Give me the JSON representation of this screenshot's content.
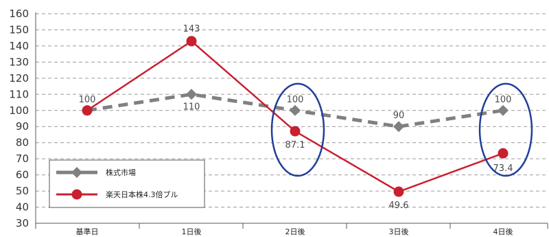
{
  "chart_data": {
    "type": "line",
    "categories": [
      "基準日",
      "1日後",
      "2日後",
      "3日後",
      "4日後"
    ],
    "ylim": [
      30,
      160
    ],
    "ystep": 10,
    "grid": true,
    "legend_position": "bottom-left",
    "series": [
      {
        "name": "株式市場",
        "values": [
          100,
          110,
          100,
          90,
          100
        ],
        "labels": [
          "100",
          "110",
          "100",
          "90",
          "100"
        ],
        "color": "#808080",
        "style": "dashed",
        "marker": "diamond"
      },
      {
        "name": "楽天日本株4.3倍ブル",
        "values": [
          100,
          143,
          87.1,
          49.6,
          73.4
        ],
        "labels": [
          "",
          "143",
          "87.1",
          "49.6",
          "73.4"
        ],
        "color": "#c8202f",
        "style": "solid",
        "marker": "circle"
      }
    ],
    "highlights": [
      {
        "category": "2日後",
        "color": "#1f3f9a"
      },
      {
        "category": "4日後",
        "color": "#1f3f9a"
      }
    ]
  }
}
